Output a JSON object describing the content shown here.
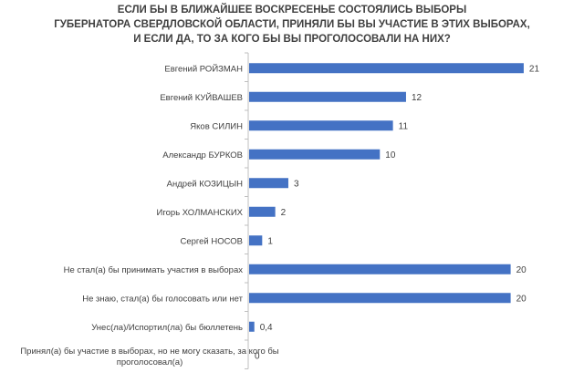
{
  "chart_data": {
    "type": "bar",
    "orientation": "horizontal",
    "title_lines": [
      "ЕСЛИ БЫ В БЛИЖАЙШЕЕ ВОСКРЕСЕНЬЕ СОСТОЯЛИСЬ ВЫБОРЫ",
      "ГУБЕРНАТОРА СВЕРДЛОВСКОЙ ОБЛАСТИ, ПРИНЯЛИ БЫ ВЫ УЧАСТИЕ В ЭТИХ ВЫБОРАХ,",
      "И ЕСЛИ ДА, ТО ЗА КОГО БЫ ВЫ ПРОГОЛОСОВАЛИ НА НИХ?"
    ],
    "categories": [
      "Евгений РОЙЗМАН",
      "Евгений КУЙВАШЕВ",
      "Яков СИЛИН",
      "Александр БУРКОВ",
      "Андрей КОЗИЦЫН",
      "Игорь ХОЛМАНСКИХ",
      "Сергей НОСОВ",
      "Не стал(а) бы принимать участия в выборах",
      "Не знаю, стал(а) бы голосовать или нет",
      "Унес(ла)/Испортил(ла) бы бюллетень",
      "Принял(а) бы участие в выборах, но не могу сказать, за кого бы проголосовал(а)"
    ],
    "values": [
      21,
      12,
      11,
      10,
      3,
      2,
      1,
      20,
      20,
      0.4,
      0
    ],
    "value_labels": [
      "21",
      "12",
      "11",
      "10",
      "3",
      "2",
      "1",
      "20",
      "20",
      "0,4",
      "0"
    ],
    "xlim": [
      0,
      21
    ],
    "grid": false,
    "legend": "none",
    "bar_color": "#4472C4",
    "axis_color": "#BFBFBF"
  }
}
